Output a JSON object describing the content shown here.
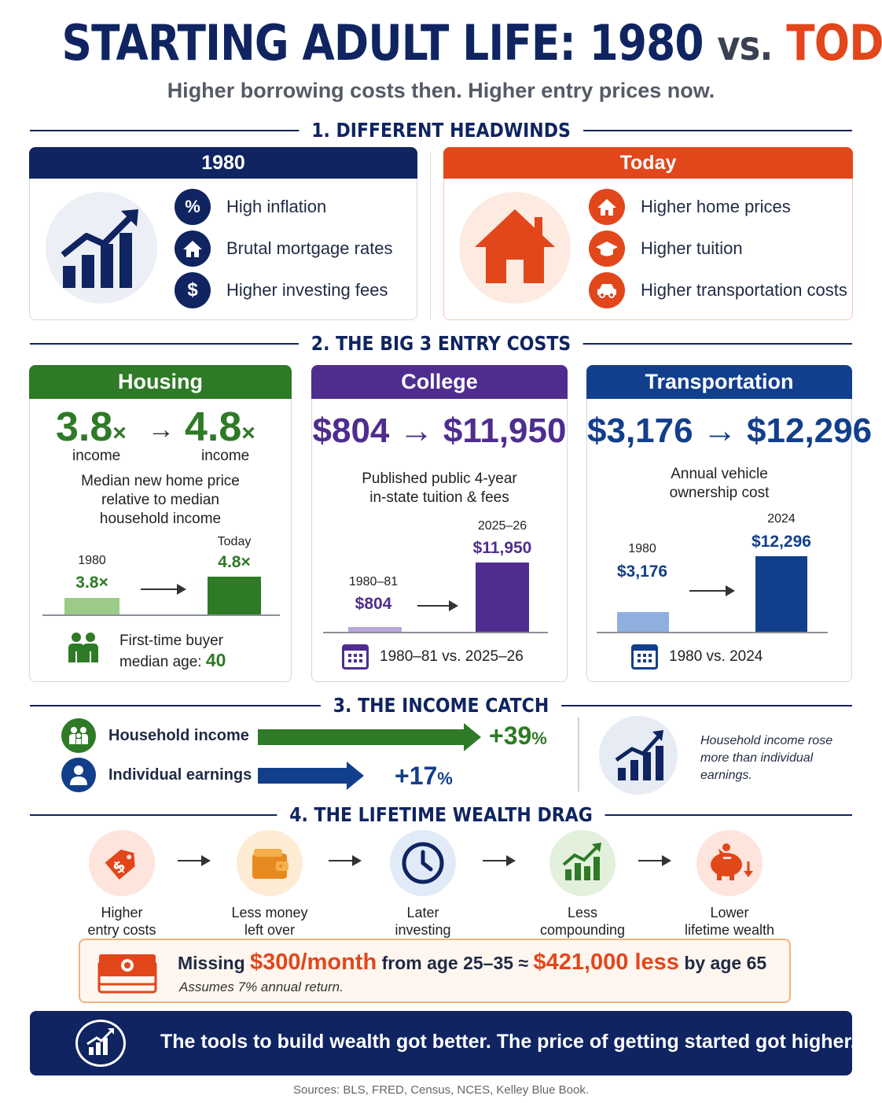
{
  "title": {
    "part1": "STARTING ADULT LIFE:",
    "year": "1980",
    "vs": "vs.",
    "today": "TODAY"
  },
  "subtitle": "Higher borrowing costs then. Higher entry prices now.",
  "section1": {
    "header": "1. DIFFERENT HEADWINDS",
    "left": {
      "title": "1980",
      "items": [
        "High inflation",
        "Brutal mortgage rates",
        "Higher investing fees"
      ]
    },
    "right": {
      "title": "Today",
      "items": [
        "Higher home prices",
        "Higher tuition",
        "Higher transportation costs"
      ]
    }
  },
  "section2": {
    "header": "2. THE BIG 3 ENTRY COSTS",
    "housing": {
      "title": "Housing",
      "from": "3.8",
      "to": "4.8",
      "mult": "×",
      "arrow": "→",
      "unit": "income",
      "desc": [
        "Median new home price",
        "relative to median",
        "household income"
      ],
      "bars": [
        {
          "label": "1980",
          "value_label": "3.8×",
          "value": 3.8
        },
        {
          "label": "Today",
          "value_label": "4.8×",
          "value": 4.8
        }
      ],
      "buyer_text1": "First-time buyer",
      "buyer_text2": "median age:",
      "buyer_age": "40"
    },
    "college": {
      "title": "College",
      "headline": "$804 → $11,950",
      "desc": [
        "Published public 4-year",
        "in-state tuition & fees"
      ],
      "bars": [
        {
          "label": "1980–81",
          "value_label": "$804",
          "value": 804
        },
        {
          "label": "2025–26",
          "value_label": "$11,950",
          "value": 11950
        }
      ],
      "foot": "1980–81 vs. 2025–26"
    },
    "transport": {
      "title": "Transportation",
      "headline": "$3,176 → $12,296",
      "desc": [
        "Annual vehicle",
        "ownership cost"
      ],
      "bars": [
        {
          "label": "1980",
          "value_label": "$3,176",
          "value": 3176
        },
        {
          "label": "2024",
          "value_label": "$12,296",
          "value": 12296
        }
      ],
      "foot": "1980 vs. 2024"
    }
  },
  "section3": {
    "header": "3. THE INCOME CATCH",
    "rows": [
      {
        "label": "Household income",
        "pct": "+39",
        "value": 39
      },
      {
        "label": "Individual earnings",
        "pct": "+17",
        "value": 17
      }
    ],
    "pct_sign": "%",
    "note": [
      "Household income rose",
      "more than individual",
      "earnings."
    ]
  },
  "section4": {
    "header": "4. THE LIFETIME WEALTH DRAG",
    "steps": [
      [
        "Higher",
        "entry costs"
      ],
      [
        "Less money",
        "left over"
      ],
      [
        "Later",
        "investing"
      ],
      [
        "Less",
        "compounding"
      ],
      [
        "Lower",
        "lifetime wealth"
      ]
    ],
    "missing": {
      "pre": "Missing",
      "amount": "$300/month",
      "mid": "from age 25–35 ≈",
      "loss": "$421,000 less",
      "post": "by age 65",
      "note": "Assumes 7% annual return."
    }
  },
  "banner": "The tools to build wealth got better. The price of getting started got higher.",
  "sources": "Sources: BLS, FRED, Census, NCES, Kelley Blue Book.",
  "colors": {
    "navy": "#0f2461",
    "orange": "#e2461b",
    "green": "#2e7a26",
    "purple": "#4e2d8f",
    "blue": "#123f8c"
  }
}
